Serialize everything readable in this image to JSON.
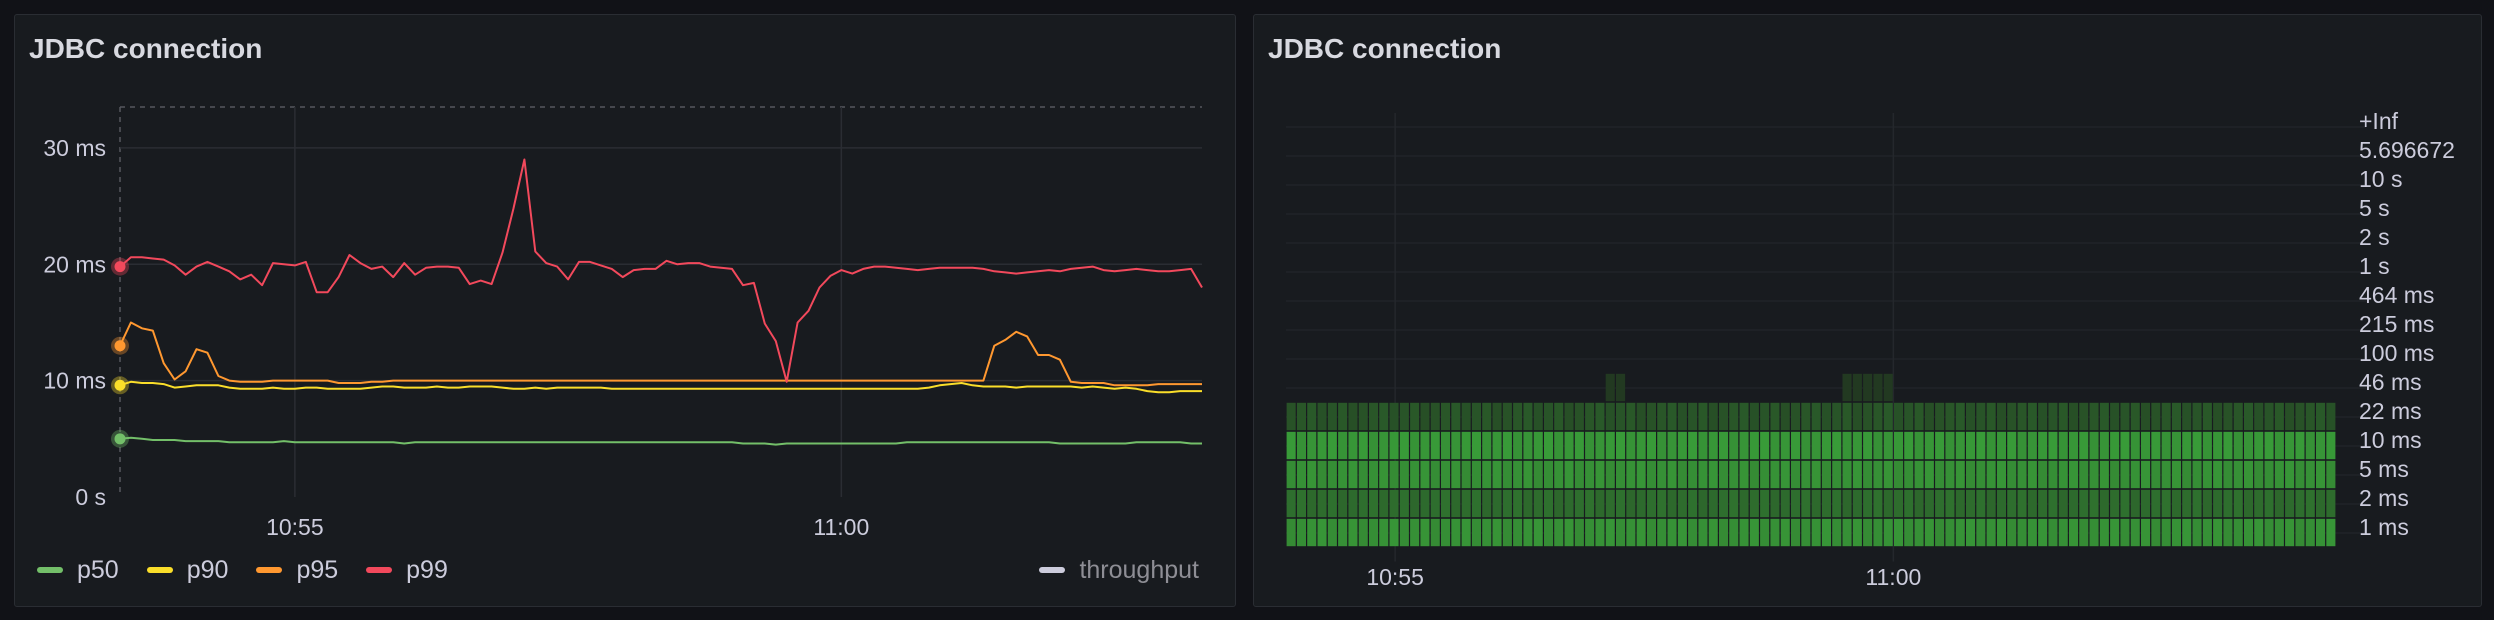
{
  "panels": {
    "left": {
      "title": "JDBC connection"
    },
    "right": {
      "title": "JDBC connection"
    }
  },
  "legend": {
    "items": [
      {
        "label": "p50",
        "color": "#73bf69"
      },
      {
        "label": "p90",
        "color": "#fade2a"
      },
      {
        "label": "p95",
        "color": "#ff9830"
      },
      {
        "label": "p99",
        "color": "#f2495c"
      }
    ],
    "hidden": {
      "label": "throughput",
      "color": "#ccccdc"
    }
  },
  "chart_data": [
    {
      "type": "line",
      "title": "JDBC connection",
      "y_ticks": [
        "0 s",
        "10 ms",
        "20 ms",
        "30 ms"
      ],
      "y_tick_values": [
        0,
        10,
        20,
        30
      ],
      "ylim": [
        0,
        33
      ],
      "x_ticks": [
        "10:55",
        "11:00"
      ],
      "x_tick_positions": [
        16,
        66
      ],
      "x_count": 100,
      "series": [
        {
          "name": "p50",
          "color": "#73bf69",
          "values": [
            5,
            5.1,
            5,
            4.9,
            4.9,
            4.9,
            4.8,
            4.8,
            4.8,
            4.8,
            4.7,
            4.7,
            4.7,
            4.7,
            4.7,
            4.8,
            4.7,
            4.7,
            4.7,
            4.7,
            4.7,
            4.7,
            4.7,
            4.7,
            4.7,
            4.7,
            4.6,
            4.7,
            4.7,
            4.7,
            4.7,
            4.7,
            4.7,
            4.7,
            4.7,
            4.7,
            4.7,
            4.7,
            4.7,
            4.7,
            4.7,
            4.7,
            4.7,
            4.7,
            4.7,
            4.7,
            4.7,
            4.7,
            4.7,
            4.7,
            4.7,
            4.7,
            4.7,
            4.7,
            4.7,
            4.7,
            4.7,
            4.6,
            4.6,
            4.6,
            4.5,
            4.6,
            4.6,
            4.6,
            4.6,
            4.6,
            4.6,
            4.6,
            4.6,
            4.6,
            4.6,
            4.6,
            4.7,
            4.7,
            4.7,
            4.7,
            4.7,
            4.7,
            4.7,
            4.7,
            4.7,
            4.7,
            4.7,
            4.7,
            4.7,
            4.7,
            4.6,
            4.6,
            4.6,
            4.6,
            4.6,
            4.6,
            4.6,
            4.7,
            4.7,
            4.7,
            4.7,
            4.7,
            4.6,
            4.6
          ]
        },
        {
          "name": "p90",
          "color": "#fade2a",
          "values": [
            9.6,
            9.9,
            9.8,
            9.8,
            9.7,
            9.4,
            9.5,
            9.6,
            9.6,
            9.6,
            9.4,
            9.3,
            9.3,
            9.3,
            9.4,
            9.3,
            9.3,
            9.4,
            9.4,
            9.3,
            9.3,
            9.3,
            9.3,
            9.4,
            9.5,
            9.5,
            9.4,
            9.4,
            9.4,
            9.5,
            9.4,
            9.4,
            9.5,
            9.5,
            9.5,
            9.4,
            9.3,
            9.3,
            9.4,
            9.3,
            9.4,
            9.4,
            9.4,
            9.4,
            9.4,
            9.3,
            9.3,
            9.3,
            9.3,
            9.3,
            9.3,
            9.3,
            9.3,
            9.3,
            9.3,
            9.3,
            9.3,
            9.3,
            9.3,
            9.3,
            9.3,
            9.3,
            9.3,
            9.3,
            9.3,
            9.3,
            9.3,
            9.3,
            9.3,
            9.3,
            9.3,
            9.3,
            9.3,
            9.3,
            9.4,
            9.6,
            9.7,
            9.8,
            9.6,
            9.5,
            9.5,
            9.5,
            9.4,
            9.5,
            9.5,
            9.5,
            9.5,
            9.5,
            9.4,
            9.5,
            9.4,
            9.3,
            9.4,
            9.3,
            9.1,
            9.0,
            9.0,
            9.1,
            9.1,
            9.1
          ]
        },
        {
          "name": "p95",
          "color": "#ff9830",
          "values": [
            13,
            15,
            14.5,
            14.3,
            11.5,
            10.1,
            10.8,
            12.7,
            12.4,
            10.4,
            10,
            9.9,
            9.9,
            9.9,
            10,
            10,
            10,
            10,
            10,
            10,
            9.8,
            9.8,
            9.8,
            9.9,
            9.9,
            10,
            10,
            10,
            10,
            10,
            10,
            10,
            10,
            10,
            10,
            10,
            10,
            10,
            10,
            10,
            10,
            10,
            10,
            10,
            10,
            10,
            10,
            10,
            10,
            10,
            10,
            10,
            10,
            10,
            10,
            10,
            10,
            10,
            10,
            10,
            10,
            10,
            10,
            10,
            10,
            10,
            10,
            10,
            10,
            10,
            10,
            10,
            10,
            10,
            10,
            10,
            10,
            10,
            10,
            10,
            13,
            13.5,
            14.2,
            13.8,
            12.2,
            12.2,
            11.8,
            9.9,
            9.8,
            9.8,
            9.8,
            9.6,
            9.6,
            9.6,
            9.6,
            9.7,
            9.7,
            9.7,
            9.7,
            9.7
          ]
        },
        {
          "name": "p99",
          "color": "#f2495c",
          "values": [
            19.8,
            20.6,
            20.6,
            20.5,
            20.4,
            19.9,
            19.1,
            19.8,
            20.2,
            19.8,
            19.4,
            18.7,
            19.1,
            18.2,
            20.1,
            20.0,
            19.9,
            20.2,
            17.6,
            17.6,
            18.9,
            20.8,
            20.1,
            19.6,
            19.8,
            18.9,
            20.1,
            19.1,
            19.7,
            19.8,
            19.8,
            19.7,
            18.3,
            18.6,
            18.3,
            21,
            24.8,
            29,
            21.1,
            20.1,
            19.8,
            18.7,
            20.2,
            20.2,
            19.9,
            19.6,
            18.9,
            19.5,
            19.6,
            19.6,
            20.3,
            20.0,
            20.1,
            20.1,
            19.8,
            19.7,
            19.6,
            18.2,
            18.4,
            14.9,
            13.4,
            9.9,
            15,
            16,
            18,
            19,
            19.5,
            19.2,
            19.6,
            19.8,
            19.8,
            19.7,
            19.6,
            19.5,
            19.6,
            19.7,
            19.7,
            19.7,
            19.7,
            19.6,
            19.4,
            19.3,
            19.2,
            19.3,
            19.4,
            19.5,
            19.4,
            19.6,
            19.7,
            19.8,
            19.5,
            19.4,
            19.5,
            19.6,
            19.5,
            19.4,
            19.4,
            19.5,
            19.6,
            18
          ]
        }
      ]
    },
    {
      "type": "heatmap",
      "title": "JDBC connection",
      "y_buckets": [
        "1 ms",
        "2 ms",
        "5 ms",
        "10 ms",
        "22 ms",
        "46 ms",
        "100 ms",
        "215 ms",
        "464 ms",
        "1 s",
        "2 s",
        "5 s",
        "10 s",
        "5.696672",
        "+Inf"
      ],
      "x_ticks": [
        "10:55",
        "11:00"
      ],
      "x_tick_positions": [
        10.6,
        59.0
      ],
      "columns": 102,
      "bucket_intensity": {
        "1 ms": 0.85,
        "2 ms": 0.55,
        "5 ms": 0.85,
        "10 ms": 0.9,
        "22 ms": 0.35
      },
      "sparse_cells_46ms": [
        31,
        32,
        54,
        55,
        56,
        57,
        58
      ],
      "colors": {
        "low": "#1f2b1e",
        "high": "#3aa33a"
      }
    }
  ]
}
